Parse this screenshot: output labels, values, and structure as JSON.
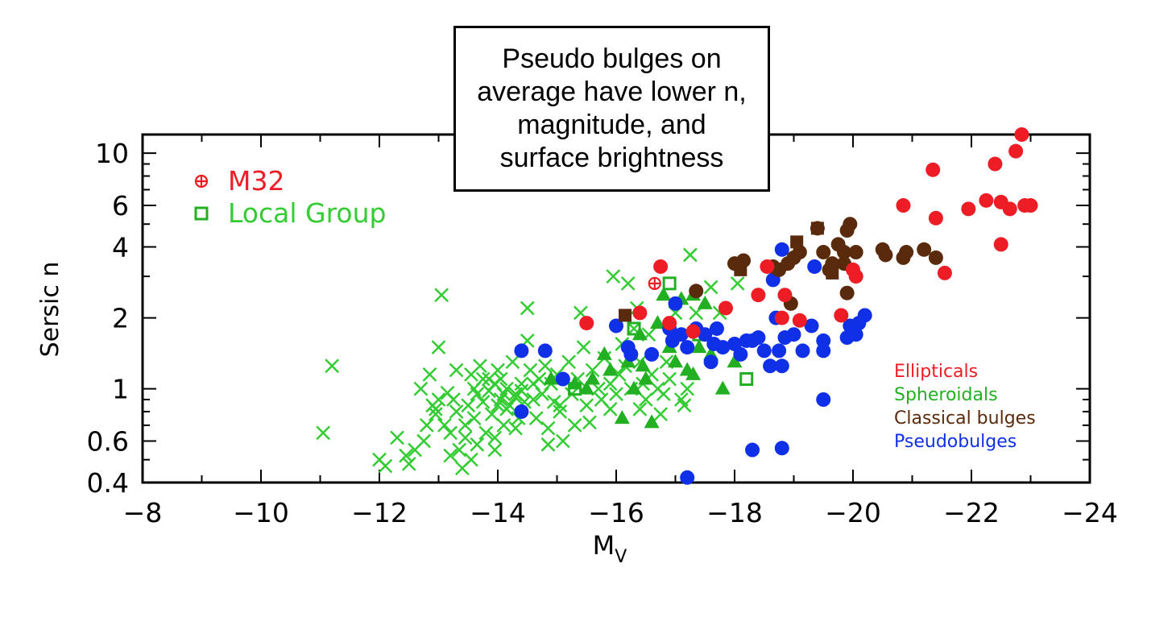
{
  "annotation": "Pseudo bulges on average have lower n, magnitude, and surface brightness",
  "colors": {
    "ellipticals": "#ee1c25",
    "spheroidals": "#22b022",
    "classical": "#5a2a0c",
    "pseudo": "#1030e8",
    "localgroup": "#33cc33"
  },
  "chart_data": {
    "type": "scatter",
    "xlabel": "M",
    "xlabel_sub": "V",
    "ylabel": "Sersic n",
    "xlim": [
      -8,
      -24
    ],
    "ylim": [
      0.4,
      12
    ],
    "yscale": "log",
    "xticks": [
      -8,
      -10,
      -12,
      -14,
      -16,
      -18,
      -20,
      -22,
      -24
    ],
    "xtick_labels": [
      "−8",
      "−10",
      "−12",
      "−14",
      "−16",
      "−18",
      "−20",
      "−22",
      "−24"
    ],
    "yticks": [
      0.4,
      0.6,
      1,
      2,
      4,
      6,
      10
    ],
    "ytick_labels": [
      "0.4",
      "0.6",
      "1",
      "2",
      "4",
      "6",
      "10"
    ],
    "legend_top_left": [
      {
        "label": "M32",
        "marker": "circle-plus"
      },
      {
        "label": "Local Group",
        "marker": "open-square"
      }
    ],
    "legend_right": [
      "Ellipticals",
      "Spheroidals",
      "Classical bulges",
      "Pseudobulges"
    ],
    "series": [
      {
        "name": "Ellipticals",
        "marker": "filled-circle",
        "points": [
          [
            -15.5,
            1.9
          ],
          [
            -16.4,
            2.1
          ],
          [
            -16.75,
            3.3
          ],
          [
            -16.9,
            1.9
          ],
          [
            -17.3,
            1.75
          ],
          [
            -17.85,
            2.2
          ],
          [
            -18.4,
            2.5
          ],
          [
            -18.55,
            3.3
          ],
          [
            -18.8,
            2.0
          ],
          [
            -18.85,
            2.5
          ],
          [
            -19.1,
            1.95
          ],
          [
            -19.8,
            2.05
          ],
          [
            -20.0,
            3.2
          ],
          [
            -20.05,
            3.0
          ],
          [
            -20.85,
            6.0
          ],
          [
            -21.35,
            8.5
          ],
          [
            -21.4,
            5.3
          ],
          [
            -21.55,
            3.1
          ],
          [
            -21.95,
            5.8
          ],
          [
            -22.25,
            6.3
          ],
          [
            -22.4,
            9.0
          ],
          [
            -22.5,
            6.2
          ],
          [
            -22.5,
            4.1
          ],
          [
            -22.65,
            5.8
          ],
          [
            -22.75,
            10.2
          ],
          [
            -22.85,
            12.0
          ],
          [
            -22.9,
            6.0
          ],
          [
            -23.0,
            6.0
          ]
        ]
      },
      {
        "name": "M32",
        "marker": "circle-plus",
        "points": [
          [
            -16.65,
            2.8
          ]
        ]
      },
      {
        "name": "Spheroidals",
        "marker": "filled-triangle",
        "points": [
          [
            -14.9,
            1.1
          ],
          [
            -15.3,
            1.05
          ],
          [
            -15.5,
            1.0
          ],
          [
            -15.6,
            1.1
          ],
          [
            -15.8,
            1.4
          ],
          [
            -15.9,
            1.2
          ],
          [
            -16.1,
            0.75
          ],
          [
            -16.2,
            1.3
          ],
          [
            -16.3,
            1.0
          ],
          [
            -16.4,
            1.7
          ],
          [
            -16.45,
            1.25
          ],
          [
            -16.5,
            1.1
          ],
          [
            -16.6,
            0.72
          ],
          [
            -16.7,
            1.9
          ],
          [
            -16.8,
            2.5
          ],
          [
            -16.9,
            1.5
          ],
          [
            -17.0,
            1.3
          ],
          [
            -17.1,
            2.4
          ],
          [
            -17.2,
            1.2
          ],
          [
            -17.3,
            1.15
          ],
          [
            -17.4,
            1.5
          ],
          [
            -17.5,
            2.3
          ],
          [
            -17.6,
            1.4
          ],
          [
            -17.8,
            1.0
          ],
          [
            -18.0,
            1.3
          ],
          [
            -17.3,
            2.5
          ]
        ]
      },
      {
        "name": "Local Group",
        "marker": "open-square",
        "points": [
          [
            -16.3,
            1.8
          ],
          [
            -16.9,
            2.8
          ],
          [
            -15.3,
            1.0
          ],
          [
            -18.2,
            1.1
          ],
          [
            -17.4,
            1.7
          ]
        ]
      },
      {
        "name": "Classical bulges",
        "marker": "filled-circle",
        "points": [
          [
            -17.35,
            2.6
          ],
          [
            -18.0,
            3.4
          ],
          [
            -18.15,
            3.5
          ],
          [
            -18.65,
            3.3
          ],
          [
            -18.75,
            3.2
          ],
          [
            -18.9,
            3.4
          ],
          [
            -18.95,
            2.3
          ],
          [
            -19.0,
            3.6
          ],
          [
            -19.1,
            3.8
          ],
          [
            -19.4,
            4.8
          ],
          [
            -19.5,
            3.8
          ],
          [
            -19.6,
            3.2
          ],
          [
            -19.65,
            3.4
          ],
          [
            -19.75,
            4.1
          ],
          [
            -19.85,
            3.8
          ],
          [
            -19.85,
            3.4
          ],
          [
            -19.9,
            4.7
          ],
          [
            -19.95,
            5.0
          ],
          [
            -19.9,
            2.55
          ],
          [
            -20.05,
            3.8
          ],
          [
            -20.5,
            3.9
          ],
          [
            -20.55,
            3.7
          ],
          [
            -20.85,
            3.6
          ],
          [
            -20.9,
            3.8
          ],
          [
            -21.2,
            3.9
          ],
          [
            -21.4,
            3.6
          ]
        ]
      },
      {
        "name": "Classical bulges (squares)",
        "marker": "filled-square",
        "points": [
          [
            -16.15,
            2.05
          ],
          [
            -18.1,
            3.2
          ],
          [
            -19.05,
            4.2
          ],
          [
            -19.4,
            4.8
          ],
          [
            -19.65,
            3.1
          ]
        ]
      },
      {
        "name": "Pseudobulges",
        "marker": "filled-circle",
        "points": [
          [
            -14.4,
            1.45
          ],
          [
            -14.4,
            0.8
          ],
          [
            -14.8,
            1.45
          ],
          [
            -15.1,
            1.1
          ],
          [
            -16.0,
            1.85
          ],
          [
            -16.2,
            1.5
          ],
          [
            -16.25,
            1.4
          ],
          [
            -16.6,
            1.4
          ],
          [
            -16.9,
            1.8
          ],
          [
            -16.95,
            1.6
          ],
          [
            -17.0,
            2.3
          ],
          [
            -17.1,
            1.7
          ],
          [
            -17.2,
            1.5
          ],
          [
            -17.35,
            1.8
          ],
          [
            -17.5,
            1.7
          ],
          [
            -17.6,
            1.3
          ],
          [
            -17.65,
            1.55
          ],
          [
            -17.7,
            1.8
          ],
          [
            -17.8,
            1.5
          ],
          [
            -18.0,
            1.55
          ],
          [
            -18.1,
            1.4
          ],
          [
            -18.2,
            1.6
          ],
          [
            -18.3,
            1.6
          ],
          [
            -18.4,
            1.65
          ],
          [
            -18.5,
            1.45
          ],
          [
            -18.6,
            1.25
          ],
          [
            -18.65,
            2.9
          ],
          [
            -18.7,
            2.0
          ],
          [
            -18.75,
            1.45
          ],
          [
            -18.8,
            1.25
          ],
          [
            -18.8,
            3.9
          ],
          [
            -18.85,
            1.65
          ],
          [
            -19.0,
            1.7
          ],
          [
            -19.15,
            1.45
          ],
          [
            -19.3,
            1.85
          ],
          [
            -19.35,
            3.3
          ],
          [
            -19.5,
            1.6
          ],
          [
            -19.5,
            1.45
          ],
          [
            -19.9,
            1.65
          ],
          [
            -19.95,
            1.85
          ],
          [
            -20.05,
            1.7
          ],
          [
            -20.1,
            1.9
          ],
          [
            -20.2,
            2.05
          ],
          [
            -19.5,
            0.9
          ],
          [
            -18.3,
            0.55
          ],
          [
            -18.8,
            0.56
          ],
          [
            -17.2,
            0.42
          ]
        ]
      },
      {
        "name": "Local Group dwarfs",
        "marker": "cross",
        "points": [
          [
            -11.05,
            0.65
          ],
          [
            -11.2,
            1.25
          ],
          [
            -12.0,
            0.5
          ],
          [
            -12.1,
            0.47
          ],
          [
            -12.3,
            0.62
          ],
          [
            -12.5,
            0.48
          ],
          [
            -12.6,
            0.55
          ],
          [
            -12.7,
            1.0
          ],
          [
            -12.75,
            0.6
          ],
          [
            -12.8,
            0.7
          ],
          [
            -12.85,
            1.15
          ],
          [
            -12.9,
            0.85
          ],
          [
            -12.95,
            0.78
          ],
          [
            -13.0,
            0.9
          ],
          [
            -13.0,
            1.5
          ],
          [
            -13.05,
            2.5
          ],
          [
            -13.1,
            0.7
          ],
          [
            -13.2,
            0.65
          ],
          [
            -13.25,
            0.9
          ],
          [
            -13.3,
            0.8
          ],
          [
            -13.3,
            1.2
          ],
          [
            -13.35,
            0.55
          ],
          [
            -13.4,
            0.46
          ],
          [
            -13.45,
            0.7
          ],
          [
            -13.5,
            0.85
          ],
          [
            -13.55,
            0.5
          ],
          [
            -13.6,
            1.0
          ],
          [
            -13.6,
            0.75
          ],
          [
            -13.65,
            0.95
          ],
          [
            -13.7,
            1.25
          ],
          [
            -13.75,
            0.88
          ],
          [
            -13.8,
            0.65
          ],
          [
            -13.85,
            1.1
          ],
          [
            -13.9,
            0.78
          ],
          [
            -13.95,
            0.55
          ],
          [
            -14.0,
            0.85
          ],
          [
            -14.0,
            1.2
          ],
          [
            -14.05,
            0.9
          ],
          [
            -14.1,
            0.7
          ],
          [
            -14.15,
            1.0
          ],
          [
            -14.2,
            0.85
          ],
          [
            -14.25,
            1.3
          ],
          [
            -14.3,
            0.95
          ],
          [
            -14.35,
            0.75
          ],
          [
            -14.4,
            1.05
          ],
          [
            -14.45,
            0.88
          ],
          [
            -14.5,
            1.6
          ],
          [
            -14.5,
            2.2
          ],
          [
            -14.55,
            1.2
          ],
          [
            -14.6,
            0.9
          ],
          [
            -14.65,
            0.75
          ],
          [
            -14.7,
            1.1
          ],
          [
            -14.75,
            0.95
          ],
          [
            -14.8,
            1.25
          ],
          [
            -14.85,
            0.68
          ],
          [
            -14.9,
            1.05
          ],
          [
            -14.95,
            0.88
          ],
          [
            -15.0,
            1.15
          ],
          [
            -15.05,
            0.8
          ],
          [
            -15.1,
            0.6
          ],
          [
            -15.2,
            1.3
          ],
          [
            -15.25,
            0.95
          ],
          [
            -15.3,
            0.7
          ],
          [
            -15.35,
            1.1
          ],
          [
            -15.4,
            2.1
          ],
          [
            -15.45,
            1.5
          ],
          [
            -15.5,
            0.85
          ],
          [
            -15.6,
            1.2
          ],
          [
            -15.7,
            1.0
          ],
          [
            -15.75,
            0.9
          ],
          [
            -15.8,
            1.35
          ],
          [
            -15.9,
            1.05
          ],
          [
            -16.0,
            0.95
          ],
          [
            -16.05,
            1.15
          ],
          [
            -16.1,
            1.55
          ],
          [
            -16.15,
            1.25
          ],
          [
            -16.2,
            2.8
          ],
          [
            -16.25,
            1.0
          ],
          [
            -16.3,
            1.8
          ],
          [
            -16.35,
            2.2
          ],
          [
            -16.4,
            1.3
          ],
          [
            -16.45,
            1.05
          ],
          [
            -16.5,
            0.9
          ],
          [
            -16.55,
            1.7
          ],
          [
            -16.6,
            1.15
          ],
          [
            -16.7,
            1.0
          ],
          [
            -16.8,
            0.95
          ],
          [
            -16.85,
            1.3
          ],
          [
            -16.9,
            1.1
          ],
          [
            -17.0,
            2.1
          ],
          [
            -17.1,
            0.9
          ],
          [
            -17.2,
            1.0
          ],
          [
            -17.25,
            3.7
          ],
          [
            -17.35,
            2.1
          ],
          [
            -17.6,
            2.7
          ],
          [
            -17.75,
            2.1
          ],
          [
            -18.05,
            2.8
          ],
          [
            -15.95,
            3.0
          ],
          [
            -14.1,
            0.95
          ],
          [
            -13.95,
            1.05
          ],
          [
            -14.3,
            0.92
          ],
          [
            -13.85,
            0.98
          ],
          [
            -14.15,
            0.82
          ],
          [
            -14.4,
            0.98
          ],
          [
            -13.75,
            1.1
          ],
          [
            -14.6,
            1.05
          ],
          [
            -13.55,
            1.15
          ],
          [
            -14.05,
            1.1
          ],
          [
            -12.95,
            0.82
          ],
          [
            -13.15,
            0.96
          ],
          [
            -13.45,
            0.62
          ],
          [
            -13.65,
            0.58
          ],
          [
            -13.95,
            0.62
          ],
          [
            -14.3,
            0.68
          ],
          [
            -14.85,
            0.58
          ],
          [
            -15.05,
            0.85
          ],
          [
            -15.55,
            0.72
          ],
          [
            -15.9,
            0.82
          ],
          [
            -16.4,
            0.82
          ],
          [
            -16.75,
            0.78
          ],
          [
            -17.15,
            0.85
          ],
          [
            -12.45,
            0.52
          ],
          [
            -13.2,
            0.52
          ]
        ]
      }
    ]
  }
}
